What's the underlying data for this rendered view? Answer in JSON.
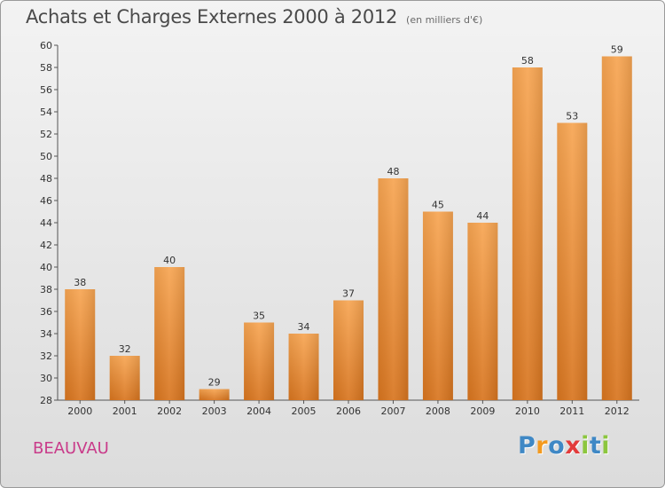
{
  "header": {
    "title": "Achats et Charges Externes 2000 à 2012",
    "subtitle": "(en milliers d'€)"
  },
  "footer": {
    "town": "BEAUVAU",
    "brand": "Proxiti"
  },
  "colors": {
    "bar_light": "#f7a552",
    "bar_dark": "#d8751f",
    "town": "#c93b8a",
    "brand_letters": [
      "#3f88c5",
      "#f39a1f",
      "#3f88c5",
      "#e23b3b",
      "#8cc63e",
      "#3f88c5",
      "#8cc63e"
    ]
  },
  "chart_data": {
    "type": "bar",
    "title": "Achats et Charges Externes 2000 à 2012",
    "subtitle": "(en milliers d'€)",
    "categories": [
      "2000",
      "2001",
      "2002",
      "2003",
      "2004",
      "2005",
      "2006",
      "2007",
      "2008",
      "2009",
      "2010",
      "2011",
      "2012"
    ],
    "values": [
      38,
      32,
      40,
      29,
      35,
      34,
      37,
      48,
      45,
      44,
      58,
      53,
      59
    ],
    "ylim": [
      28,
      60
    ],
    "yticks": [
      28,
      30,
      32,
      34,
      36,
      38,
      40,
      42,
      44,
      46,
      48,
      50,
      52,
      54,
      56,
      58,
      60
    ],
    "grid": false,
    "legend": "none"
  }
}
